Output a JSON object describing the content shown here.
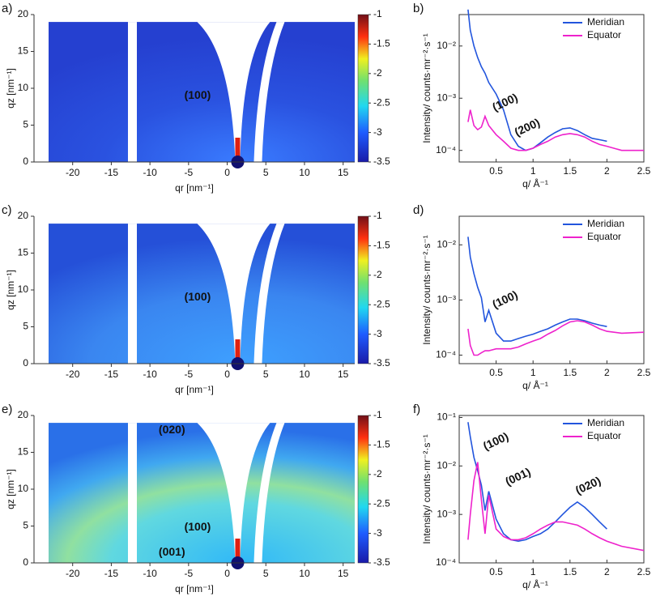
{
  "chart_data": [
    {
      "type": "image",
      "label": "a)",
      "xlabel": "qr [nm⁻¹]",
      "ylabel": "qz [nm⁻¹]",
      "xlim": [
        -25,
        16.5
      ],
      "xticks": [
        -20,
        -15,
        -10,
        -5,
        0,
        5,
        10,
        15
      ],
      "ylim": [
        0,
        20
      ],
      "yticks": [
        0,
        5,
        10,
        15,
        20
      ],
      "brightness": "low",
      "colorbar": {
        "lim": [
          -3.5,
          -1
        ],
        "ticks": [
          -3.5,
          -3,
          -2.5,
          -2,
          -1.5,
          -1
        ]
      },
      "annotations": [
        {
          "text": "(100)",
          "color": "#ffffff"
        }
      ]
    },
    {
      "type": "line",
      "label": "b)",
      "xlabel": "q/ Å⁻¹",
      "ylabel": "Intensity/ counts·mr⁻²·s⁻¹",
      "log_y": true,
      "legend": "upper right",
      "xlim": [
        0,
        2.5
      ],
      "xticks": [
        0.5,
        1,
        1.5,
        2,
        2.5
      ],
      "ylim": [
        6e-05,
        0.04
      ],
      "yticks": [
        {
          "value": 0.0001,
          "label": "10⁻⁴"
        },
        {
          "value": 0.001,
          "label": "10⁻³"
        },
        {
          "value": 0.01,
          "label": "10⁻²"
        }
      ],
      "x": [
        0.12,
        0.15,
        0.2,
        0.25,
        0.3,
        0.35,
        0.4,
        0.5,
        0.6,
        0.7,
        0.8,
        0.9,
        1.0,
        1.1,
        1.2,
        1.3,
        1.4,
        1.5,
        1.6,
        1.7,
        1.8,
        1.9,
        2.0,
        2.2,
        2.5
      ],
      "series": [
        {
          "name": "Meridian",
          "color": "#2255dd",
          "values": [
            0.05,
            0.02,
            0.01,
            0.006,
            0.004,
            0.003,
            0.002,
            0.0012,
            0.0006,
            0.0002,
            0.00012,
            0.0001,
            0.00011,
            0.00014,
            0.00018,
            0.00022,
            0.00026,
            0.00027,
            0.00024,
            0.0002,
            0.00017,
            0.00016,
            0.00015,
            null,
            null
          ]
        },
        {
          "name": "Equator",
          "color": "#ee22cc",
          "values": [
            0.00035,
            0.0006,
            0.0003,
            0.00025,
            0.00028,
            0.00045,
            0.0003,
            0.0002,
            0.00015,
            0.00011,
            0.0001,
            0.0001,
            0.00011,
            0.00013,
            0.00015,
            0.00018,
            0.0002,
            0.00021,
            0.0002,
            0.00018,
            0.00015,
            0.00013,
            0.00012,
            0.0001,
            0.0001
          ]
        }
      ],
      "annotations": [
        {
          "text": "(100)",
          "color": "#ee22cc"
        },
        {
          "text": "(200)",
          "color": "#ee22cc"
        }
      ]
    },
    {
      "type": "image",
      "label": "c)",
      "xlabel": "qr [nm⁻¹]",
      "ylabel": "qz [nm⁻¹]",
      "xlim": [
        -25,
        16.5
      ],
      "xticks": [
        -20,
        -15,
        -10,
        -5,
        0,
        5,
        10,
        15
      ],
      "ylim": [
        0,
        20
      ],
      "yticks": [
        0,
        5,
        10,
        15,
        20
      ],
      "brightness": "medium",
      "colorbar": {
        "lim": [
          -3.5,
          -1
        ],
        "ticks": [
          -3.5,
          -3,
          -2.5,
          -2,
          -1.5,
          -1
        ]
      },
      "annotations": [
        {
          "text": "(100)",
          "color": "#ffffff"
        }
      ]
    },
    {
      "type": "line",
      "label": "d)",
      "xlabel": "q/ Å⁻¹",
      "ylabel": "Intensity/ counts·mr⁻²·s⁻¹",
      "log_y": true,
      "legend": "upper right",
      "xlim": [
        0,
        2.5
      ],
      "xticks": [
        0.5,
        1,
        1.5,
        2,
        2.5
      ],
      "ylim": [
        7e-05,
        0.033
      ],
      "yticks": [
        {
          "value": 0.0001,
          "label": "10⁻⁴"
        },
        {
          "value": 0.001,
          "label": "10⁻³"
        },
        {
          "value": 0.01,
          "label": "10⁻²"
        }
      ],
      "x": [
        0.12,
        0.15,
        0.2,
        0.25,
        0.3,
        0.35,
        0.4,
        0.5,
        0.6,
        0.7,
        0.8,
        0.9,
        1.0,
        1.1,
        1.2,
        1.3,
        1.4,
        1.5,
        1.6,
        1.7,
        1.8,
        1.9,
        2.0,
        2.2,
        2.5
      ],
      "series": [
        {
          "name": "Meridian",
          "color": "#2255dd",
          "values": [
            0.014,
            0.006,
            0.003,
            0.0017,
            0.0011,
            0.0004,
            0.00065,
            0.00025,
            0.00018,
            0.00018,
            0.0002,
            0.00022,
            0.00024,
            0.00027,
            0.0003,
            0.00035,
            0.0004,
            0.00045,
            0.00045,
            0.00042,
            0.00038,
            0.00035,
            0.00033,
            null,
            null
          ]
        },
        {
          "name": "Equator",
          "color": "#ee22cc",
          "values": [
            0.0003,
            0.00015,
            0.0001,
            0.0001,
            0.00011,
            0.00012,
            0.00012,
            0.00013,
            0.00013,
            0.00013,
            0.00014,
            0.00016,
            0.00018,
            0.0002,
            0.00024,
            0.00028,
            0.00034,
            0.0004,
            0.00042,
            0.0004,
            0.00035,
            0.0003,
            0.00027,
            0.00025,
            0.00026
          ]
        }
      ],
      "annotations": [
        {
          "text": "(100)",
          "color": "#2255dd"
        }
      ]
    },
    {
      "type": "image",
      "label": "e)",
      "xlabel": "qr [nm⁻¹]",
      "ylabel": "qz [nm⁻¹]",
      "xlim": [
        -25,
        16.5
      ],
      "xticks": [
        -20,
        -15,
        -10,
        -5,
        0,
        5,
        10,
        15
      ],
      "ylim": [
        0,
        20
      ],
      "yticks": [
        0,
        5,
        10,
        15,
        20
      ],
      "brightness": "high",
      "colorbar": {
        "lim": [
          -3.5,
          -1
        ],
        "ticks": [
          -3.5,
          -3,
          -2.5,
          -2,
          -1.5,
          -1
        ]
      },
      "annotations": [
        {
          "text": "(020)",
          "color": "#ffffff"
        },
        {
          "text": "(100)",
          "color": "#ffffff"
        },
        {
          "text": "(001)",
          "color": "#ffffff"
        }
      ]
    },
    {
      "type": "line",
      "label": "f)",
      "xlabel": "q/ Å⁻¹",
      "ylabel": "Intensity/ counts·mr⁻²·s⁻¹",
      "log_y": true,
      "legend": "upper right",
      "xlim": [
        0,
        2.5
      ],
      "xticks": [
        0.5,
        1,
        1.5,
        2,
        2.5
      ],
      "ylim": [
        0.0001,
        0.11
      ],
      "yticks": [
        {
          "value": 0.0001,
          "label": "10⁻⁴"
        },
        {
          "value": 0.001,
          "label": "10⁻³"
        },
        {
          "value": 0.01,
          "label": "10⁻²"
        },
        {
          "value": 0.1,
          "label": "10⁻¹"
        }
      ],
      "x": [
        0.12,
        0.15,
        0.2,
        0.25,
        0.3,
        0.35,
        0.4,
        0.5,
        0.6,
        0.7,
        0.8,
        0.9,
        1.0,
        1.1,
        1.2,
        1.3,
        1.4,
        1.5,
        1.6,
        1.7,
        1.8,
        1.9,
        2.0,
        2.2,
        2.5
      ],
      "series": [
        {
          "name": "Meridian",
          "color": "#2255dd",
          "values": [
            0.08,
            0.04,
            0.015,
            0.008,
            0.004,
            0.0012,
            0.003,
            0.0008,
            0.0004,
            0.0003,
            0.00028,
            0.0003,
            0.00035,
            0.0004,
            0.0005,
            0.0007,
            0.001,
            0.0014,
            0.0018,
            0.0014,
            0.001,
            0.0007,
            0.0005,
            null,
            null
          ]
        },
        {
          "name": "Equator",
          "color": "#ee22cc",
          "values": [
            0.0003,
            0.001,
            0.005,
            0.012,
            0.002,
            0.0004,
            0.0025,
            0.0005,
            0.00035,
            0.0003,
            0.0003,
            0.00033,
            0.0004,
            0.0005,
            0.0006,
            0.0007,
            0.0007,
            0.00065,
            0.0006,
            0.0005,
            0.0004,
            0.00033,
            0.00028,
            0.00022,
            0.00018
          ]
        }
      ],
      "annotations": [
        {
          "text": "(100)",
          "color": "#ee22cc"
        },
        {
          "text": "(001)",
          "color": "#ee22cc"
        },
        {
          "text": "(020)",
          "color": "#2255dd"
        }
      ]
    }
  ]
}
